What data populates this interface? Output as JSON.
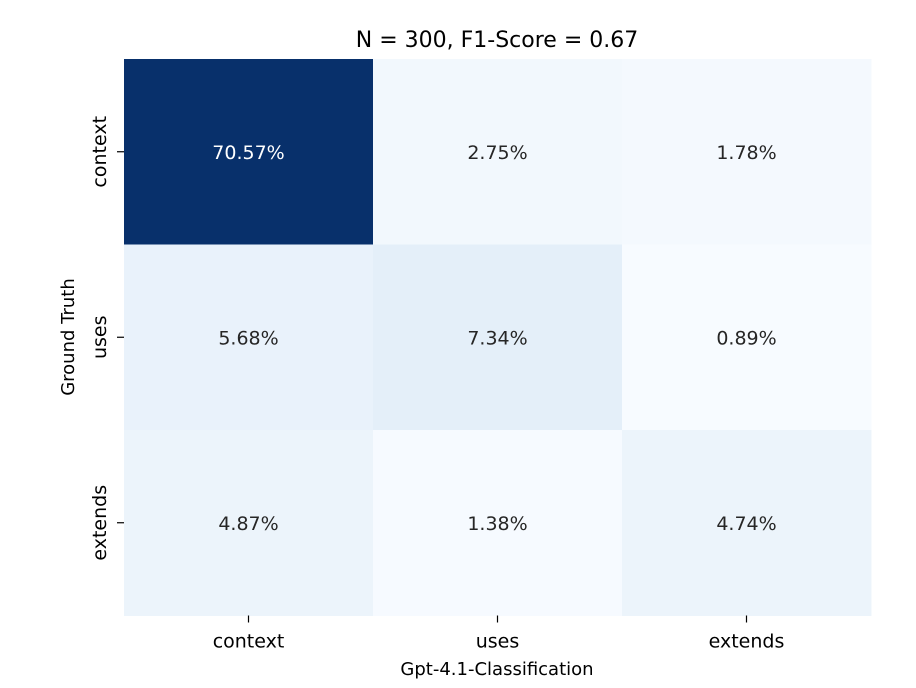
{
  "chart_data": {
    "type": "heatmap",
    "title": "N = 300, F1-Score = 0.67",
    "xlabel": "Gpt-4.1-Classification",
    "ylabel": "Ground Truth",
    "x_categories": [
      "context",
      "uses",
      "extends"
    ],
    "y_categories": [
      "context",
      "uses",
      "extends"
    ],
    "values": [
      [
        70.57,
        2.75,
        1.78
      ],
      [
        5.68,
        7.34,
        0.89
      ],
      [
        4.87,
        1.38,
        4.74
      ]
    ],
    "value_labels": [
      [
        "70.57%",
        "2.75%",
        "1.78%"
      ],
      [
        "5.68%",
        "7.34%",
        "0.89%"
      ],
      [
        "4.87%",
        "1.38%",
        "4.74%"
      ]
    ],
    "colormap": "Blues",
    "colors": {
      "low": "#f7fbff",
      "high": "#08306b",
      "text_dark": "#262626",
      "text_light": "#ffffff"
    }
  }
}
